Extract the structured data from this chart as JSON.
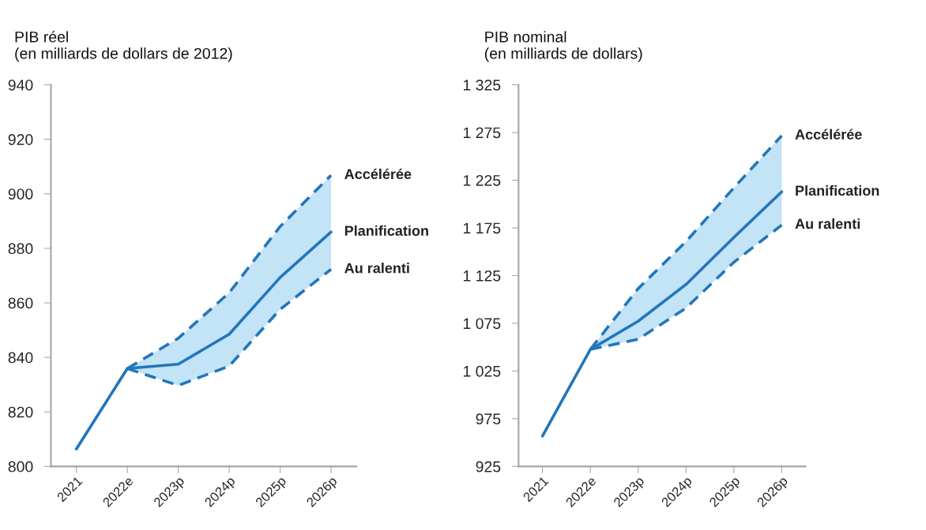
{
  "chart_data": [
    {
      "type": "line",
      "title": "PIB réel\n(en milliards de dollars de 2012)",
      "categories": [
        "2021",
        "2022e",
        "2023p",
        "2024p",
        "2025p",
        "2026p"
      ],
      "series": [
        {
          "name": "Accélérée",
          "color": "#2276bb",
          "line_style": "dashed",
          "values": [
            null,
            835.9,
            847,
            863.7,
            888,
            906.8
          ]
        },
        {
          "name": "Planification",
          "color": "#2276bb",
          "line_style": "solid",
          "values": [
            806.4,
            835.9,
            837.5,
            848.5,
            869.3,
            886
          ],
          "lower": [
            null,
            835.9,
            829.7,
            836.8,
            857.6,
            872.3
          ],
          "upper": [
            null,
            835.9,
            847,
            863.7,
            888,
            906.8
          ]
        },
        {
          "name": "Au ralenti",
          "color": "#2276bb",
          "line_style": "dashed",
          "values": [
            null,
            835.9,
            829.7,
            836.8,
            857.6,
            872.3
          ]
        }
      ],
      "ylim": [
        800,
        940
      ],
      "yticks": [
        800,
        820,
        840,
        860,
        880,
        900,
        920,
        940
      ],
      "grid": false,
      "legend": false
    },
    {
      "type": "line",
      "title": "PIB nominal\n(en milliards de dollars)",
      "categories": [
        "2021",
        "2022e",
        "2023p",
        "2024p",
        "2025p",
        "2026p"
      ],
      "series": [
        {
          "name": "Accélérée",
          "color": "#2276bb",
          "line_style": "dashed",
          "values": [
            null,
            1047.6,
            1111.4,
            1160.7,
            1217,
            1271.7
          ]
        },
        {
          "name": "Planification",
          "color": "#2276bb",
          "line_style": "solid",
          "values": [
            956.9,
            1047.6,
            1077.2,
            1115.7,
            1165,
            1212.8
          ],
          "lower": [
            null,
            1047.6,
            1058.3,
            1091,
            1139,
            1178
          ],
          "upper": [
            null,
            1047.6,
            1111.4,
            1160.7,
            1217,
            1271.7
          ]
        },
        {
          "name": "Au ralenti",
          "color": "#2276bb",
          "line_style": "dashed",
          "values": [
            null,
            1047.6,
            1058.3,
            1091,
            1139,
            1178
          ]
        }
      ],
      "ylim": [
        925,
        1325
      ],
      "yticks": [
        {
          "value": 925,
          "label": "925"
        },
        {
          "value": 975,
          "label": "975"
        },
        {
          "value": 1025,
          "label": "1 025"
        },
        {
          "value": 1075,
          "label": "1 075"
        },
        {
          "value": 1125,
          "label": "1 125"
        },
        {
          "value": 1175,
          "label": "1 175"
        },
        {
          "value": 1225,
          "label": "1 225"
        },
        {
          "value": 1275,
          "label": "1 275"
        },
        {
          "value": 1325,
          "label": "1 325"
        }
      ],
      "grid": false,
      "legend": false
    }
  ]
}
